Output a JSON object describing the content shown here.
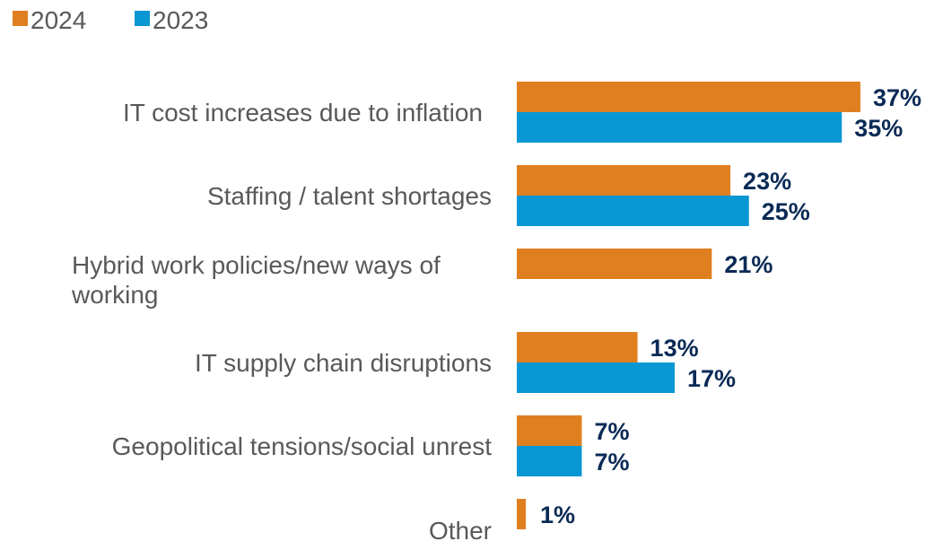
{
  "chart_data": {
    "type": "bar",
    "orientation": "horizontal",
    "categories": [
      [
        "IT cost increases due to inflation"
      ],
      [
        "Staffing / talent shortages"
      ],
      [
        "Hybrid work policies/new ways of",
        "working"
      ],
      [
        "IT supply chain disruptions"
      ],
      [
        "Geopolitical tensions/social unrest"
      ],
      [
        "Other"
      ]
    ],
    "series": [
      {
        "name": "2024",
        "color": "#e07f1f",
        "values": [
          37,
          23,
          21,
          13,
          7,
          1
        ],
        "labels": [
          "37%",
          "23%",
          "21%",
          "13%",
          "7%",
          "1%"
        ]
      },
      {
        "name": "2023",
        "color": "#0897d3",
        "values": [
          35,
          25,
          null,
          17,
          7,
          null
        ],
        "labels": [
          "35%",
          "25%",
          "",
          "17%",
          "7%",
          ""
        ]
      }
    ],
    "legend_position": "top-left",
    "value_axis_visible": false,
    "grid": false,
    "xlim": [
      0,
      37
    ]
  }
}
